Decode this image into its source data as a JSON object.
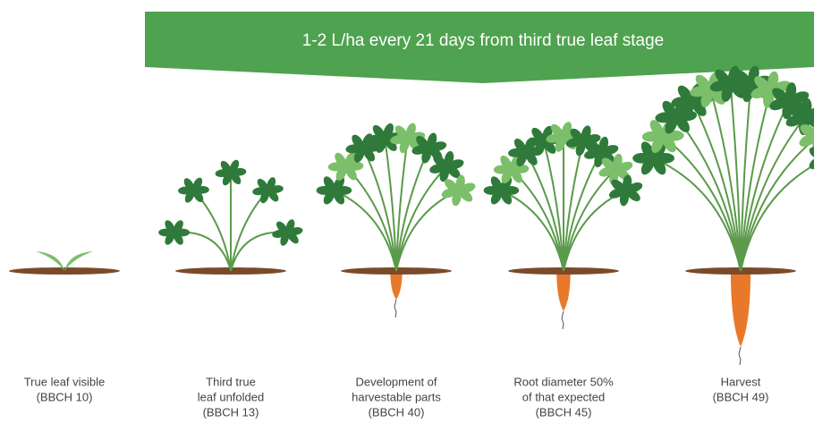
{
  "banner": {
    "text": "1-2 L/ha every 21 days from third true leaf stage"
  },
  "stages": [
    {
      "label": [
        "True leaf visible",
        "(BBCH 10)"
      ]
    },
    {
      "label": [
        "Third true",
        "leaf unfolded",
        "(BBCH 13)"
      ]
    },
    {
      "label": [
        "Development of",
        "harvestable parts",
        "(BBCH 40)"
      ]
    },
    {
      "label": [
        "Root diameter 50%",
        "of that expected",
        "(BBCH 45)"
      ]
    },
    {
      "label": [
        "Harvest",
        "(BBCH 49)"
      ]
    }
  ]
}
